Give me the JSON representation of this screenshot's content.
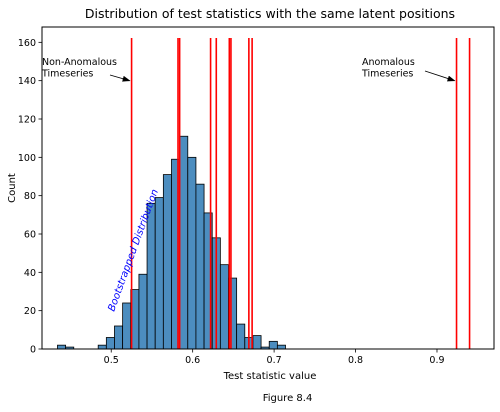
{
  "chart_data": {
    "type": "bar",
    "title": "Distribution of test statistics with the same latent positions",
    "xlabel": "Test statistic value",
    "ylabel": "Count",
    "xlim": [
      0.415,
      0.97
    ],
    "ylim": [
      0,
      168
    ],
    "xticks": [
      0.5,
      0.6,
      0.7,
      0.8,
      0.9
    ],
    "xtick_labels": [
      "0.5",
      "0.6",
      "0.7",
      "0.8",
      "0.9"
    ],
    "yticks": [
      0,
      20,
      40,
      60,
      80,
      100,
      120,
      140,
      160
    ],
    "ytick_labels": [
      "0",
      "20",
      "40",
      "60",
      "80",
      "100",
      "120",
      "140",
      "160"
    ],
    "grid": false,
    "bin_width": 0.01,
    "histogram": {
      "bin_starts": [
        0.434,
        0.444,
        0.484,
        0.494,
        0.504,
        0.514,
        0.524,
        0.534,
        0.544,
        0.554,
        0.564,
        0.574,
        0.584,
        0.594,
        0.604,
        0.614,
        0.624,
        0.634,
        0.644,
        0.654,
        0.664,
        0.674,
        0.684,
        0.694,
        0.704,
        0.714,
        0.724
      ],
      "counts": [
        2,
        1,
        2,
        6,
        12,
        24,
        31,
        39,
        76,
        79,
        91,
        99,
        111,
        100,
        86,
        71,
        58,
        44,
        37,
        13,
        6,
        7,
        1,
        4,
        2,
        0,
        0
      ],
      "color": "#4c8dbf",
      "edge_color": "#000000"
    },
    "vertical_lines": {
      "color": "#ff0000",
      "x": [
        0.525,
        0.582,
        0.584,
        0.622,
        0.629,
        0.645,
        0.647,
        0.669,
        0.673,
        0.924,
        0.94
      ]
    },
    "annotations": [
      {
        "text": "Non-Anomalous\nTimeseries",
        "color": "#000000",
        "arrow_to": [
          0.525,
          140
        ]
      },
      {
        "text": "Anomalous\nTimeseries",
        "color": "#000000",
        "arrow_to": [
          0.924,
          140
        ]
      },
      {
        "text": "Bootstrapped Distribution",
        "color": "#0000ff",
        "rotation": 70
      }
    ]
  },
  "caption": "Figure 8.4"
}
